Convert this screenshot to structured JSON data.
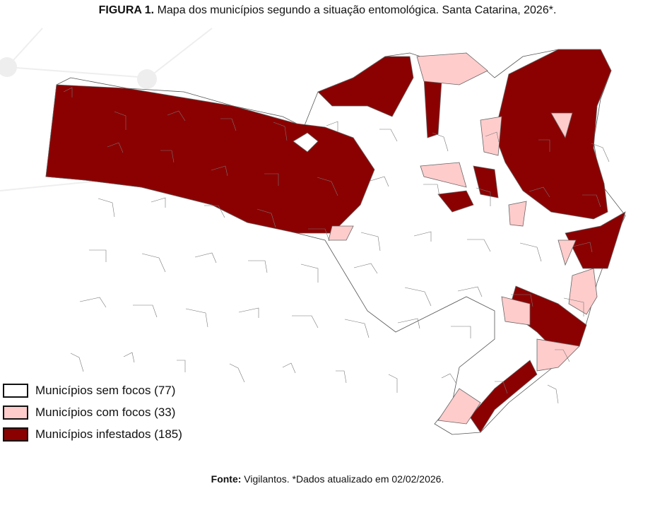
{
  "title": {
    "label": "FIGURA 1.",
    "text": "Mapa dos municípios segundo a situação entomológica. Santa Catarina, 2026*."
  },
  "legend": [
    {
      "label": "Municípios sem focos (77)",
      "category": "sem focos",
      "count": 77,
      "color": "#ffffff"
    },
    {
      "label": "Municípios com focos (33)",
      "category": "com focos",
      "count": 33,
      "color": "#ffcccc"
    },
    {
      "label": "Municípios infestados (185)",
      "category": "infestados",
      "count": 185,
      "color": "#8b0000"
    }
  ],
  "footer": {
    "label": "Fonte:",
    "text": "Vigilantos. *Dados atualizado em 02/02/2026."
  }
}
